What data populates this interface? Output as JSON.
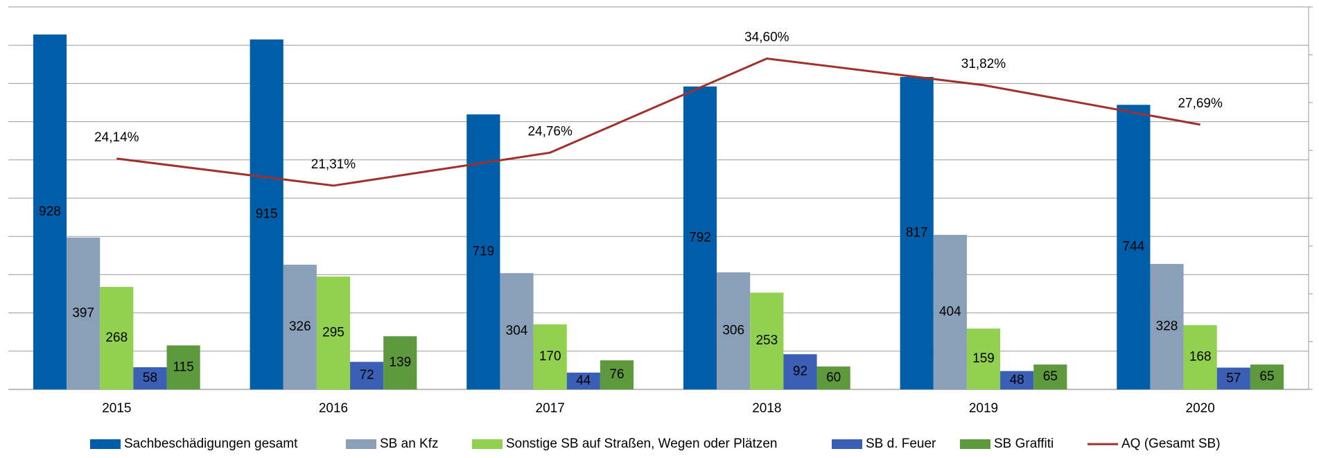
{
  "chart_data": {
    "type": "bar",
    "categories": [
      "2015",
      "2016",
      "2017",
      "2018",
      "2019",
      "2020"
    ],
    "series": [
      {
        "name": "Sachbeschädigungen gesamt",
        "color": "#005ea8",
        "values": [
          928,
          915,
          719,
          792,
          817,
          744
        ]
      },
      {
        "name": "SB an Kfz",
        "color": "#8a9fb8",
        "values": [
          397,
          326,
          304,
          306,
          404,
          328
        ]
      },
      {
        "name": "Sonstige SB auf Straßen, Wegen oder Plätzen",
        "color": "#92d050",
        "values": [
          268,
          295,
          170,
          253,
          159,
          168
        ]
      },
      {
        "name": "SB d. Feuer",
        "color": "#3a5fb5",
        "values": [
          58,
          72,
          44,
          92,
          48,
          57
        ]
      },
      {
        "name": "SB Graffiti",
        "color": "#5e9a3d",
        "values": [
          115,
          139,
          76,
          60,
          65,
          65
        ]
      },
      {
        "name": "AQ (Gesamt SB)",
        "color": "#a0302e",
        "type": "line",
        "axis": "y2",
        "values": [
          24.14,
          21.31,
          24.76,
          34.6,
          31.82,
          27.69
        ],
        "value_labels": [
          "24,14%",
          "21,31%",
          "24,76%",
          "34,60%",
          "31,82%",
          "27,69%"
        ]
      }
    ],
    "ylim": [
      0,
      1000
    ],
    "yticks": [
      0,
      100,
      200,
      300,
      400,
      500,
      600,
      700,
      800,
      900,
      1000
    ],
    "y2lim": [
      0,
      40
    ],
    "y2ticks": [
      0,
      5,
      10,
      15,
      20,
      25,
      30,
      35,
      40
    ],
    "grid": true,
    "legend": "bottom"
  }
}
